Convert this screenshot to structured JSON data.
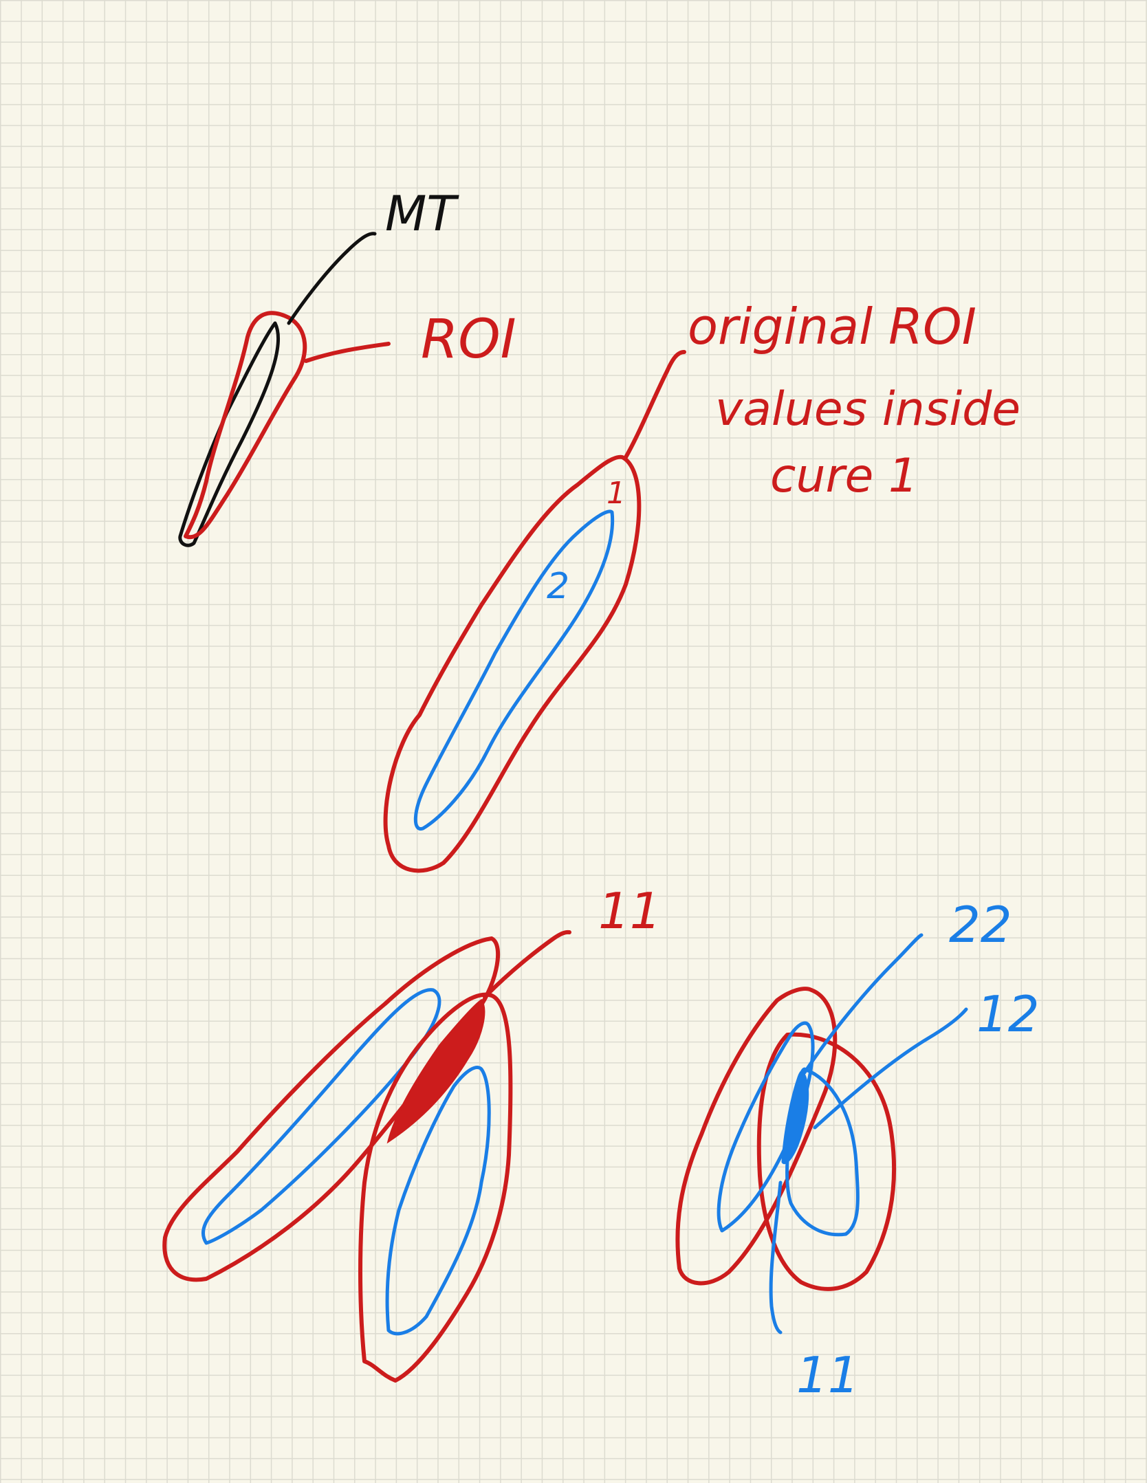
{
  "colors": {
    "red": "#cc1c1c",
    "blue": "#1a7ee6",
    "black": "#111111",
    "paper": "#f8f6ea",
    "grid": "#dcdbd0"
  },
  "labels": {
    "mt": "MT",
    "roi": "ROI",
    "original_line1": "original ROI",
    "original_line2": "values inside",
    "original_line3": "cure 1",
    "inner_1": "1",
    "inner_2": "2",
    "overlap_11_red": "11",
    "label_22": "22",
    "label_12": "12",
    "label_11_blue": "11"
  }
}
